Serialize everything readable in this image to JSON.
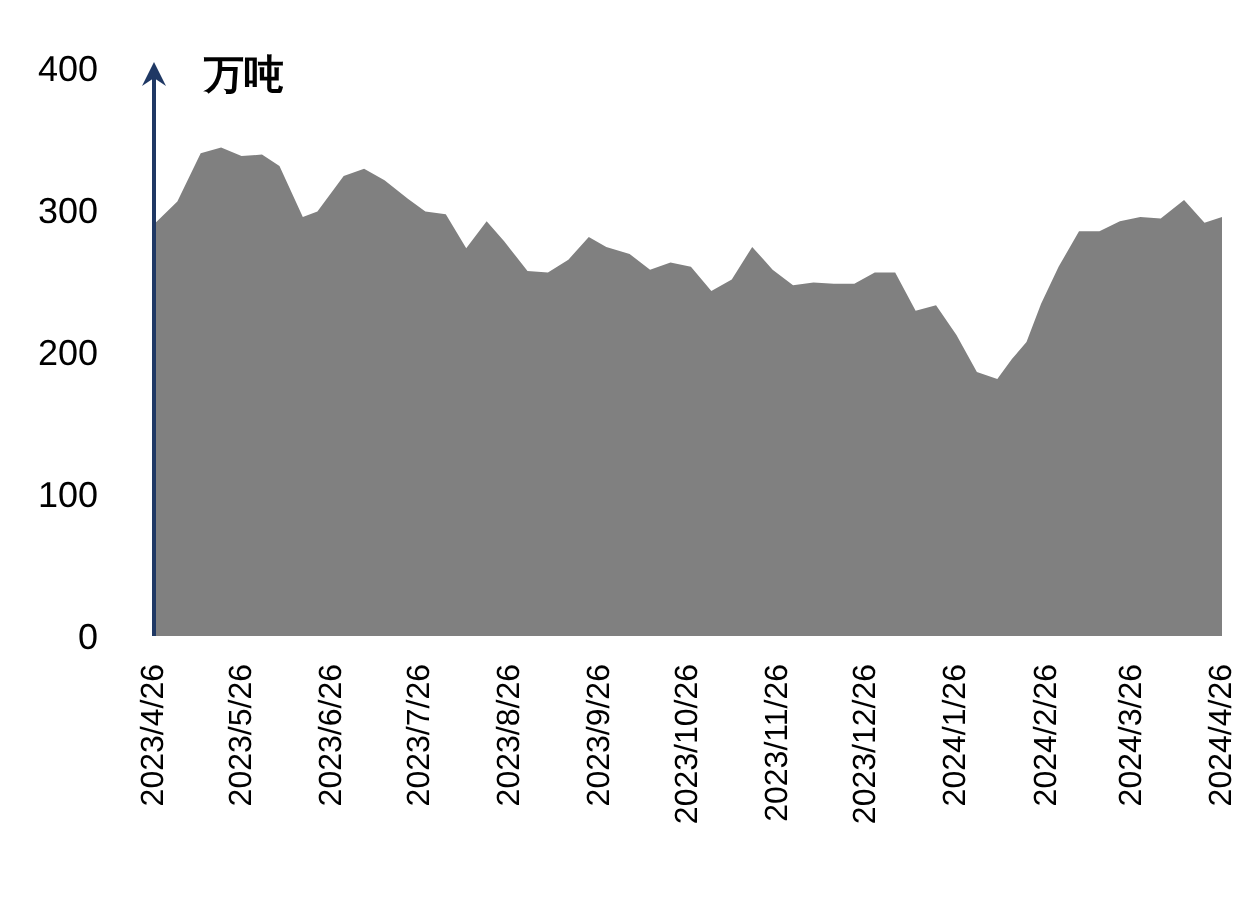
{
  "chart_data": {
    "type": "area",
    "ylabel": "万吨",
    "color": "#808080",
    "x": [
      "2023-04-26",
      "2023-05-04",
      "2023-05-12",
      "2023-05-19",
      "2023-05-26",
      "2023-06-02",
      "2023-06-08",
      "2023-06-16",
      "2023-06-21",
      "2023-06-30",
      "2023-07-07",
      "2023-07-14",
      "2023-07-22",
      "2023-07-28",
      "2023-08-04",
      "2023-08-11",
      "2023-08-18",
      "2023-08-24",
      "2023-09-01",
      "2023-09-08",
      "2023-09-15",
      "2023-09-22",
      "2023-09-28",
      "2023-10-06",
      "2023-10-13",
      "2023-10-20",
      "2023-10-27",
      "2023-11-03",
      "2023-11-10",
      "2023-11-17",
      "2023-11-24",
      "2023-12-01",
      "2023-12-08",
      "2023-12-15",
      "2023-12-22",
      "2023-12-29",
      "2024-01-05",
      "2024-01-12",
      "2024-01-19",
      "2024-01-26",
      "2024-02-02",
      "2024-02-09",
      "2024-02-14",
      "2024-02-19",
      "2024-02-24",
      "2024-03-01",
      "2024-03-08",
      "2024-03-15",
      "2024-03-22",
      "2024-03-29",
      "2024-04-05",
      "2024-04-13",
      "2024-04-20",
      "2024-04-26"
    ],
    "values": [
      290,
      306,
      340,
      344,
      338,
      339,
      331,
      295,
      299,
      324,
      329,
      321,
      308,
      299,
      297,
      273,
      292,
      278,
      257,
      256,
      265,
      281,
      274,
      269,
      258,
      263,
      260,
      243,
      251,
      274,
      258,
      247,
      249,
      248,
      248,
      256,
      256,
      229,
      233,
      212,
      186,
      181,
      195,
      207,
      234,
      260,
      285,
      285,
      292,
      295,
      294,
      307,
      291,
      295
    ],
    "xlim": [
      "2023-04-26",
      "2024-04-26"
    ],
    "xticks": [
      {
        "value": "2023-04-26",
        "label": "2023/4/26"
      },
      {
        "value": "2023-05-26",
        "label": "2023/5/26"
      },
      {
        "value": "2023-06-26",
        "label": "2023/6/26"
      },
      {
        "value": "2023-07-26",
        "label": "2023/7/26"
      },
      {
        "value": "2023-08-26",
        "label": "2023/8/26"
      },
      {
        "value": "2023-09-26",
        "label": "2023/9/26"
      },
      {
        "value": "2023-10-26",
        "label": "2023/10/26"
      },
      {
        "value": "2023-11-26",
        "label": "2023/11/26"
      },
      {
        "value": "2023-12-26",
        "label": "2023/12/26"
      },
      {
        "value": "2024-01-26",
        "label": "2024/1/26"
      },
      {
        "value": "2024-02-26",
        "label": "2024/2/26"
      },
      {
        "value": "2024-03-26",
        "label": "2024/3/26"
      },
      {
        "value": "2024-04-26",
        "label": "2024/4/26"
      }
    ],
    "ylim": [
      0,
      400
    ],
    "yticks": [
      0,
      100,
      200,
      300,
      400
    ]
  }
}
